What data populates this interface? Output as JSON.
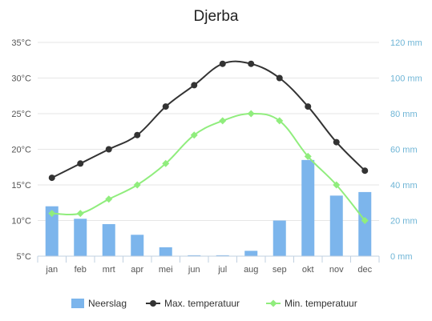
{
  "chart_data": {
    "type": "bar-line-combo",
    "title": "Djerba",
    "categories": [
      "jan",
      "feb",
      "mrt",
      "apr",
      "mei",
      "jun",
      "jul",
      "aug",
      "sep",
      "okt",
      "nov",
      "dec"
    ],
    "left_axis": {
      "ticks": [
        "5°C",
        "10°C",
        "15°C",
        "20°C",
        "25°C",
        "30°C",
        "35°C"
      ],
      "ylim": [
        5,
        35
      ]
    },
    "right_axis": {
      "ticks": [
        "0 mm",
        "20 mm",
        "40 mm",
        "60 mm",
        "80 mm",
        "100 mm",
        "120 mm"
      ],
      "ylim": [
        0,
        120
      ]
    },
    "series": [
      {
        "name": "Neerslag",
        "type": "bar",
        "axis": "right",
        "color": "#7cb5ec",
        "values": [
          28,
          21,
          18,
          12,
          5,
          0.5,
          0.5,
          3,
          20,
          54,
          34,
          36
        ]
      },
      {
        "name": "Max. temperatuur",
        "type": "line",
        "axis": "left",
        "color": "#333333",
        "values": [
          16,
          18,
          20,
          22,
          26,
          29,
          32,
          32,
          30,
          26,
          21,
          17
        ]
      },
      {
        "name": "Min. temperatuur",
        "type": "line",
        "axis": "left",
        "color": "#90ed7d",
        "values": [
          11,
          11,
          13,
          15,
          18,
          22,
          24,
          25,
          24,
          19,
          15,
          10
        ]
      }
    ],
    "grid": true,
    "legend_position": "bottom"
  }
}
